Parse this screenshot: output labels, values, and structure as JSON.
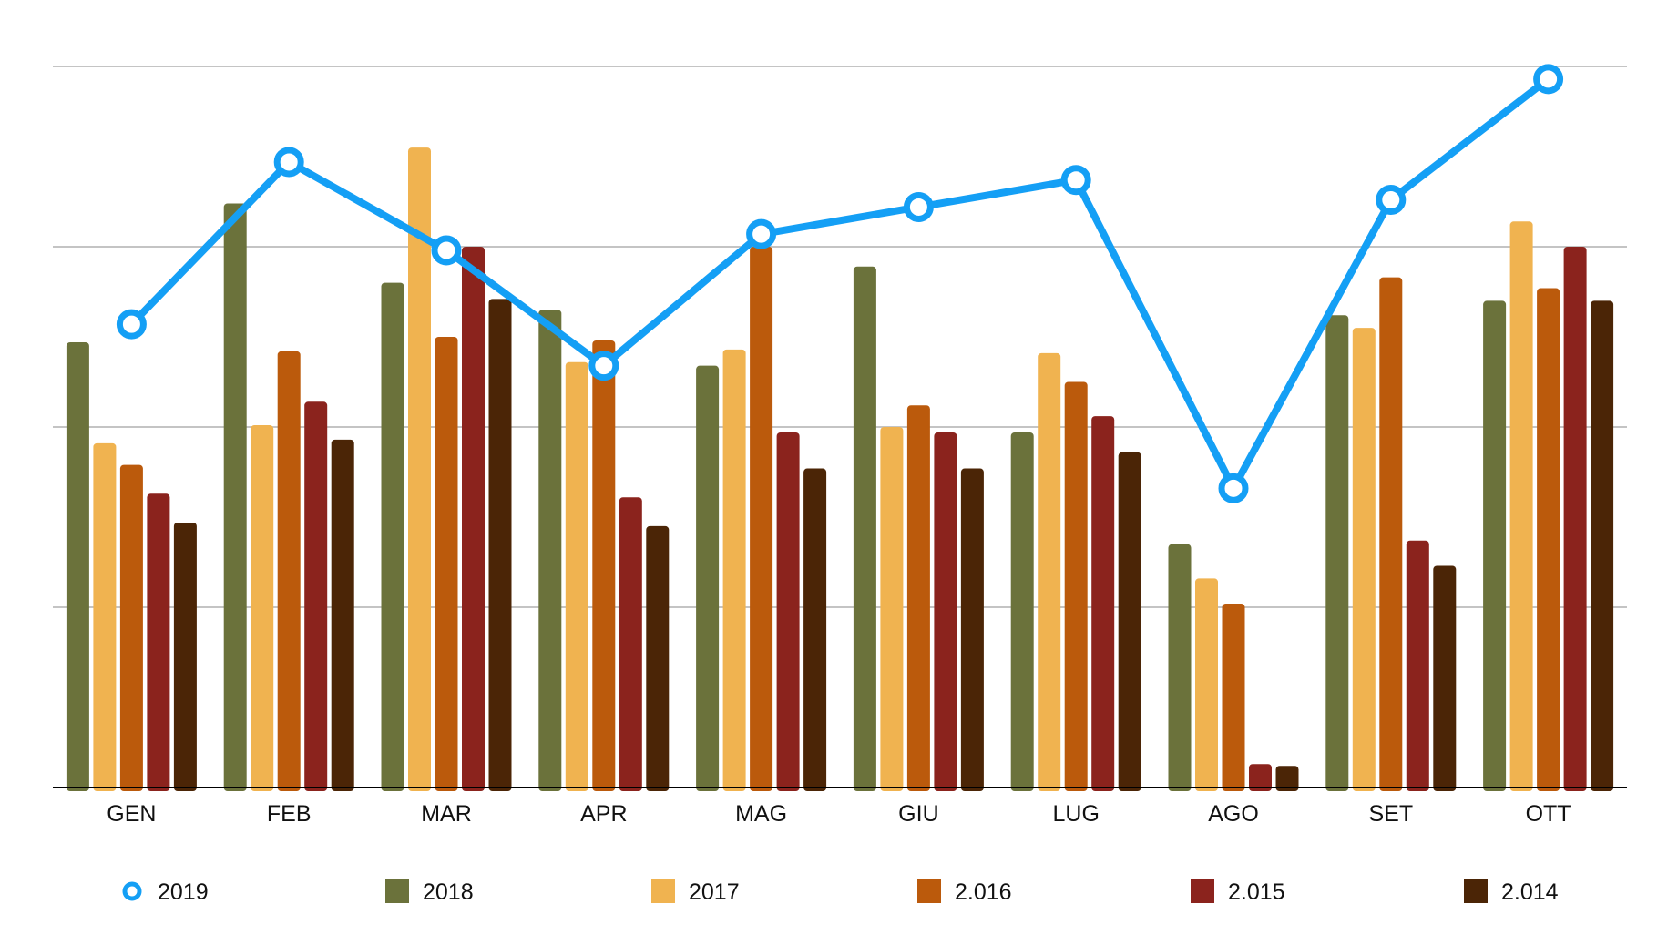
{
  "chart_data": {
    "type": "bar",
    "title": "",
    "xlabel": "",
    "ylabel": "",
    "ylim": [
      0,
      4
    ],
    "grid": true,
    "y_tick_labels_visible": false,
    "legend_position": "bottom",
    "categories": [
      "GEN",
      "FEB",
      "MAR",
      "APR",
      "MAG",
      "GIU",
      "LUG",
      "AGO",
      "SET",
      "OTT"
    ],
    "series": [
      {
        "name": "2018",
        "kind": "bar",
        "color": "#6b723b",
        "values": [
          2.47,
          3.24,
          2.8,
          2.65,
          2.34,
          2.89,
          1.97,
          1.35,
          2.62,
          2.7
        ]
      },
      {
        "name": "2017",
        "kind": "bar",
        "color": "#f0b350",
        "values": [
          1.91,
          2.01,
          3.55,
          2.36,
          2.43,
          2.0,
          2.41,
          1.16,
          2.55,
          3.14
        ]
      },
      {
        "name": "2.016",
        "kind": "bar",
        "color": "#bb5a0c",
        "values": [
          1.79,
          2.42,
          2.5,
          2.48,
          3.0,
          2.12,
          2.25,
          1.02,
          2.83,
          2.77
        ]
      },
      {
        "name": "2.015",
        "kind": "bar",
        "color": "#8b231d",
        "values": [
          1.63,
          2.14,
          3.0,
          1.61,
          1.97,
          1.97,
          2.06,
          0.13,
          1.37,
          3.0
        ]
      },
      {
        "name": "2.014",
        "kind": "bar",
        "color": "#4b2506",
        "values": [
          1.47,
          1.93,
          2.71,
          1.45,
          1.77,
          1.77,
          1.86,
          0.12,
          1.23,
          2.7
        ]
      },
      {
        "name": "2019",
        "kind": "line",
        "color": "#149ff5",
        "values": [
          2.57,
          3.47,
          2.98,
          2.34,
          3.07,
          3.22,
          3.37,
          1.66,
          3.26,
          3.93
        ]
      }
    ]
  }
}
